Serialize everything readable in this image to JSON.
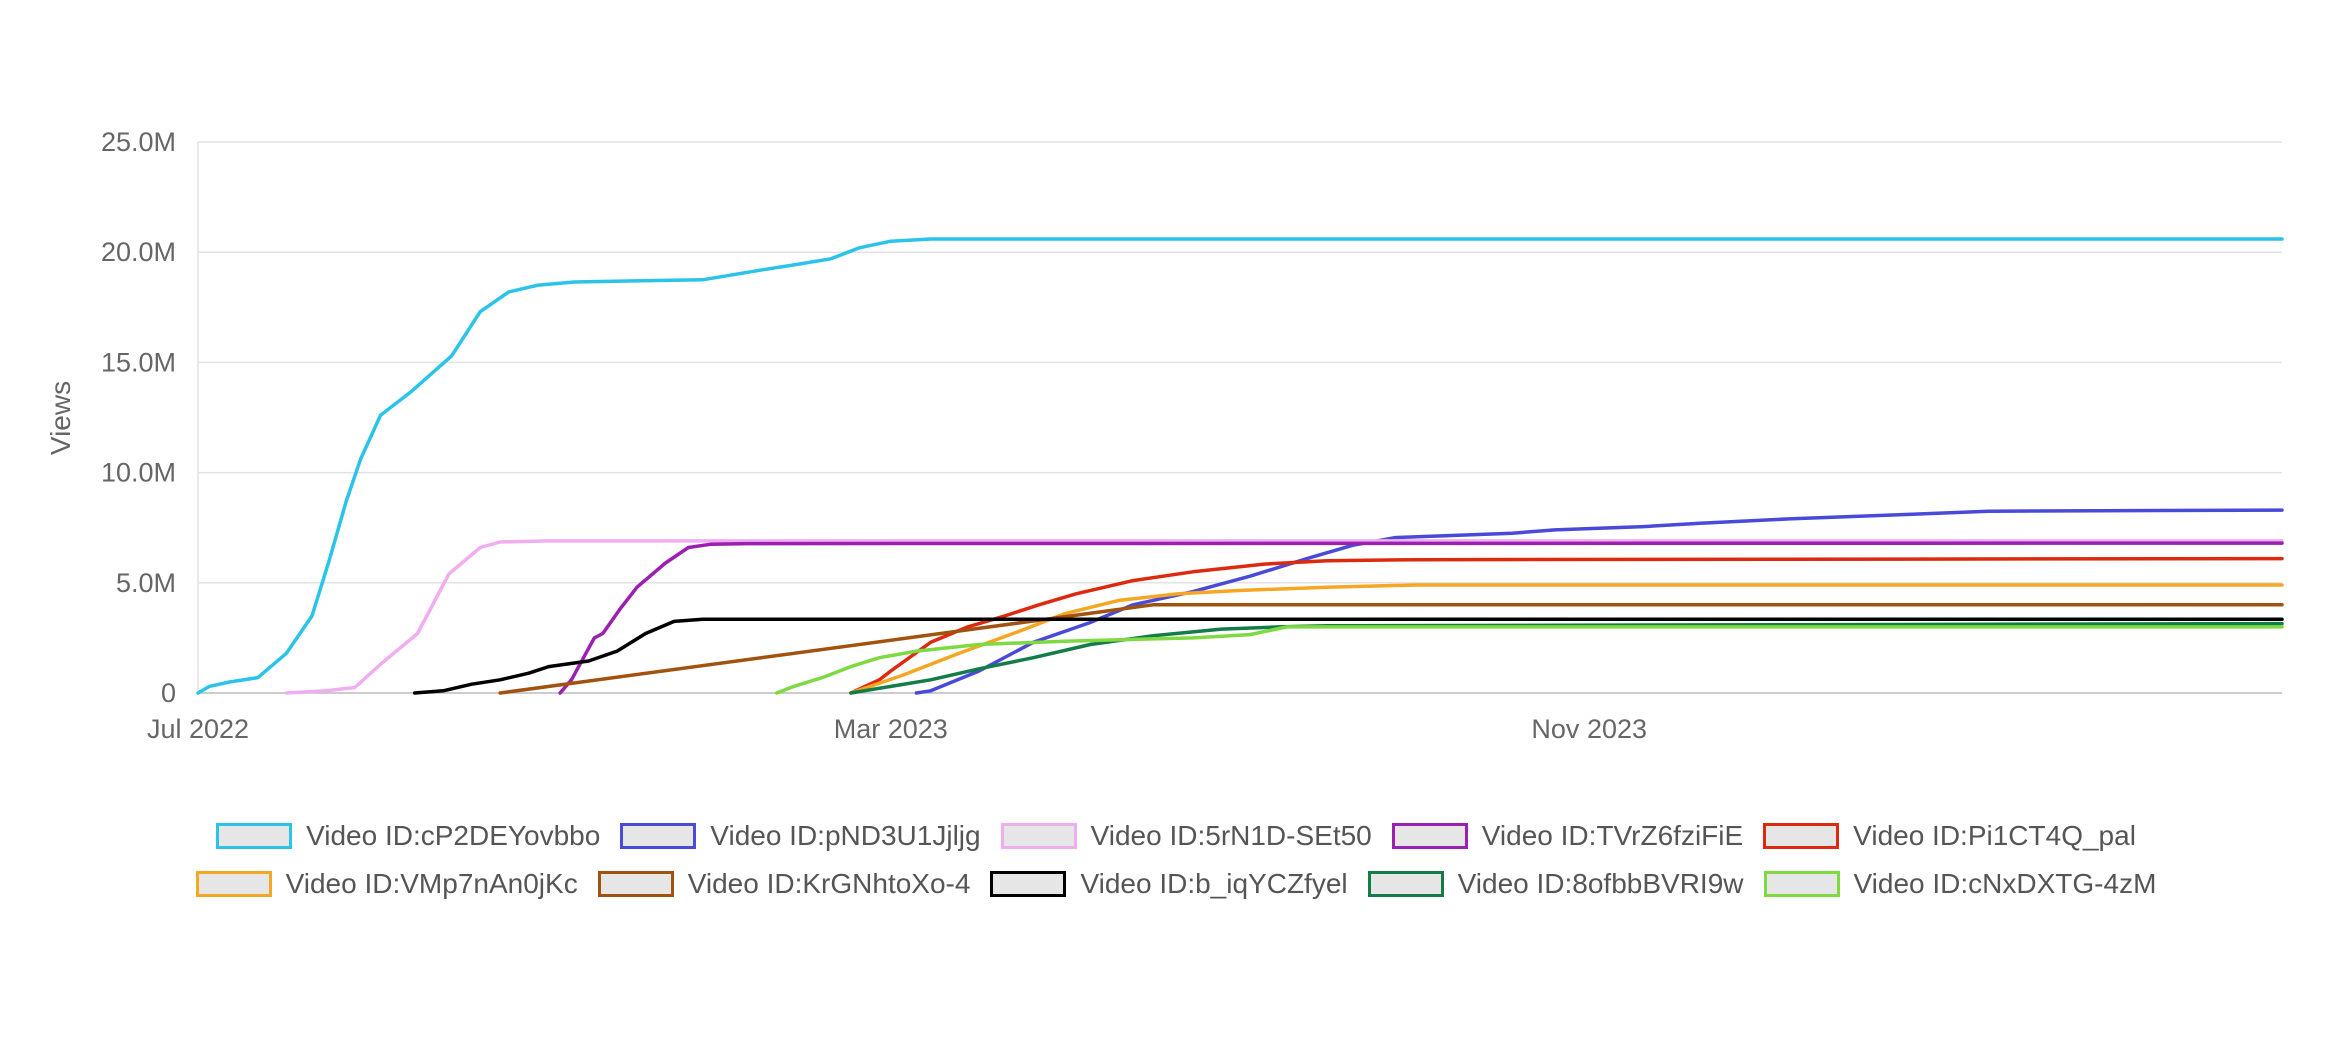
{
  "chart_data": {
    "type": "line",
    "ylabel": "Views",
    "xlabel": "",
    "x_range": [
      "2022-07",
      "2024-07"
    ],
    "x_ticks": [
      {
        "date": "2022-07-01",
        "label": "Jul 2022"
      },
      {
        "date": "2023-03-01",
        "label": "Mar 2023"
      },
      {
        "date": "2023-11-01",
        "label": "Nov 2023"
      }
    ],
    "ylim": [
      0,
      25000000
    ],
    "y_ticks": [
      {
        "value": 0,
        "label": "0"
      },
      {
        "value": 5000000,
        "label": "5.0M"
      },
      {
        "value": 10000000,
        "label": "10.0M"
      },
      {
        "value": 15000000,
        "label": "15.0M"
      },
      {
        "value": 20000000,
        "label": "20.0M"
      },
      {
        "value": 25000000,
        "label": "25.0M"
      }
    ],
    "grid": true,
    "legend_position": "bottom",
    "series": [
      {
        "name": "Video ID:cP2DEYovbbo",
        "color": "#2bc4e8",
        "points": [
          [
            "2022-07-01",
            0
          ],
          [
            "2022-07-05",
            300000
          ],
          [
            "2022-07-12",
            500000
          ],
          [
            "2022-07-22",
            700000
          ],
          [
            "2022-08-01",
            1800000
          ],
          [
            "2022-08-10",
            3500000
          ],
          [
            "2022-08-16",
            6000000
          ],
          [
            "2022-08-22",
            8700000
          ],
          [
            "2022-08-27",
            10600000
          ],
          [
            "2022-09-03",
            12600000
          ],
          [
            "2022-09-14",
            13700000
          ],
          [
            "2022-09-28",
            15300000
          ],
          [
            "2022-10-08",
            17300000
          ],
          [
            "2022-10-18",
            18200000
          ],
          [
            "2022-10-28",
            18500000
          ],
          [
            "2022-11-10",
            18650000
          ],
          [
            "2022-12-01",
            18700000
          ],
          [
            "2022-12-25",
            18750000
          ],
          [
            "2023-01-15",
            19200000
          ],
          [
            "2023-01-25",
            19400000
          ],
          [
            "2023-02-08",
            19700000
          ],
          [
            "2023-02-18",
            20200000
          ],
          [
            "2023-03-01",
            20500000
          ],
          [
            "2023-03-15",
            20600000
          ],
          [
            "2024-07-01",
            20600000
          ]
        ]
      },
      {
        "name": "Video ID:pND3U1Jjljg",
        "color": "#4a4ad9",
        "points": [
          [
            "2023-03-10",
            0
          ],
          [
            "2023-03-15",
            100000
          ],
          [
            "2023-04-01",
            1000000
          ],
          [
            "2023-04-20",
            2300000
          ],
          [
            "2023-05-10",
            3200000
          ],
          [
            "2023-05-25",
            4000000
          ],
          [
            "2023-06-15",
            4600000
          ],
          [
            "2023-07-05",
            5300000
          ],
          [
            "2023-07-25",
            6100000
          ],
          [
            "2023-08-10",
            6700000
          ],
          [
            "2023-08-25",
            7050000
          ],
          [
            "2023-09-15",
            7150000
          ],
          [
            "2023-10-05",
            7250000
          ],
          [
            "2023-10-20",
            7400000
          ],
          [
            "2023-11-20",
            7550000
          ],
          [
            "2023-12-10",
            7700000
          ],
          [
            "2024-01-10",
            7900000
          ],
          [
            "2024-02-20",
            8100000
          ],
          [
            "2024-03-20",
            8250000
          ],
          [
            "2024-07-01",
            8300000
          ]
        ]
      },
      {
        "name": "Video ID:5rN1D-SEt50",
        "color": "#f0aef0",
        "points": [
          [
            "2022-08-01",
            0
          ],
          [
            "2022-08-15",
            100000
          ],
          [
            "2022-08-25",
            250000
          ],
          [
            "2022-09-03",
            1300000
          ],
          [
            "2022-09-16",
            2700000
          ],
          [
            "2022-09-27",
            5400000
          ],
          [
            "2022-10-08",
            6600000
          ],
          [
            "2022-10-15",
            6850000
          ],
          [
            "2022-11-01",
            6900000
          ],
          [
            "2024-07-01",
            6900000
          ]
        ]
      },
      {
        "name": "Video ID:TVrZ6fziFiE",
        "color": "#9b1fb0",
        "points": [
          [
            "2022-11-05",
            0
          ],
          [
            "2022-11-09",
            600000
          ],
          [
            "2022-11-17",
            2500000
          ],
          [
            "2022-11-20",
            2700000
          ],
          [
            "2022-11-26",
            3800000
          ],
          [
            "2022-12-02",
            4800000
          ],
          [
            "2022-12-12",
            5900000
          ],
          [
            "2022-12-20",
            6600000
          ],
          [
            "2022-12-28",
            6750000
          ],
          [
            "2023-01-10",
            6780000
          ],
          [
            "2024-07-01",
            6800000
          ]
        ]
      },
      {
        "name": "Video ID:Pi1CT4Q_pal",
        "color": "#dd2a0e",
        "points": [
          [
            "2023-02-15",
            0
          ],
          [
            "2023-02-25",
            600000
          ],
          [
            "2023-03-01",
            1000000
          ],
          [
            "2023-03-15",
            2300000
          ],
          [
            "2023-03-28",
            3000000
          ],
          [
            "2023-04-10",
            3500000
          ],
          [
            "2023-04-22",
            4000000
          ],
          [
            "2023-05-05",
            4500000
          ],
          [
            "2023-05-25",
            5100000
          ],
          [
            "2023-06-15",
            5500000
          ],
          [
            "2023-07-10",
            5850000
          ],
          [
            "2023-08-01",
            6000000
          ],
          [
            "2023-09-01",
            6050000
          ],
          [
            "2024-07-01",
            6100000
          ]
        ]
      },
      {
        "name": "Video ID:VMp7nAn0jKc",
        "color": "#f5a623",
        "points": [
          [
            "2023-02-15",
            0
          ],
          [
            "2023-03-05",
            800000
          ],
          [
            "2023-03-25",
            1800000
          ],
          [
            "2023-04-15",
            2800000
          ],
          [
            "2023-05-01",
            3600000
          ],
          [
            "2023-05-20",
            4200000
          ],
          [
            "2023-06-10",
            4500000
          ],
          [
            "2023-07-01",
            4650000
          ],
          [
            "2023-08-01",
            4800000
          ],
          [
            "2023-09-01",
            4900000
          ],
          [
            "2024-07-01",
            4900000
          ]
        ]
      },
      {
        "name": "Video ID:KrGNhtoXo-4",
        "color": "#a0520e",
        "points": [
          [
            "2022-10-15",
            0
          ],
          [
            "2023-06-01",
            4000000
          ],
          [
            "2024-07-01",
            4000000
          ]
        ]
      },
      {
        "name": "Video ID:b_iqYCZfyel",
        "color": "#000000",
        "points": [
          [
            "2022-09-15",
            0
          ],
          [
            "2022-09-25",
            100000
          ],
          [
            "2022-10-05",
            400000
          ],
          [
            "2022-10-15",
            600000
          ],
          [
            "2022-10-25",
            900000
          ],
          [
            "2022-11-01",
            1200000
          ],
          [
            "2022-11-15",
            1450000
          ],
          [
            "2022-11-25",
            1900000
          ],
          [
            "2022-12-05",
            2700000
          ],
          [
            "2022-12-15",
            3250000
          ],
          [
            "2022-12-25",
            3350000
          ],
          [
            "2024-07-01",
            3350000
          ]
        ]
      },
      {
        "name": "Video ID:8ofbbBVRI9w",
        "color": "#137c47",
        "points": [
          [
            "2023-02-15",
            0
          ],
          [
            "2023-03-15",
            600000
          ],
          [
            "2023-04-01",
            1100000
          ],
          [
            "2023-04-20",
            1600000
          ],
          [
            "2023-05-10",
            2200000
          ],
          [
            "2023-06-01",
            2600000
          ],
          [
            "2023-06-25",
            2900000
          ],
          [
            "2023-07-15",
            3000000
          ],
          [
            "2023-08-01",
            3050000
          ],
          [
            "2024-07-01",
            3150000
          ]
        ]
      },
      {
        "name": "Video ID:cNxDXTG-4zM",
        "color": "#7ed942",
        "points": [
          [
            "2023-01-20",
            0
          ],
          [
            "2023-01-26",
            300000
          ],
          [
            "2023-02-05",
            700000
          ],
          [
            "2023-02-15",
            1200000
          ],
          [
            "2023-02-25",
            1600000
          ],
          [
            "2023-03-10",
            1900000
          ],
          [
            "2023-04-01",
            2200000
          ],
          [
            "2023-05-01",
            2350000
          ],
          [
            "2023-06-15",
            2500000
          ],
          [
            "2023-07-05",
            2650000
          ],
          [
            "2023-07-18",
            3000000
          ],
          [
            "2024-07-01",
            3000000
          ]
        ]
      }
    ]
  }
}
